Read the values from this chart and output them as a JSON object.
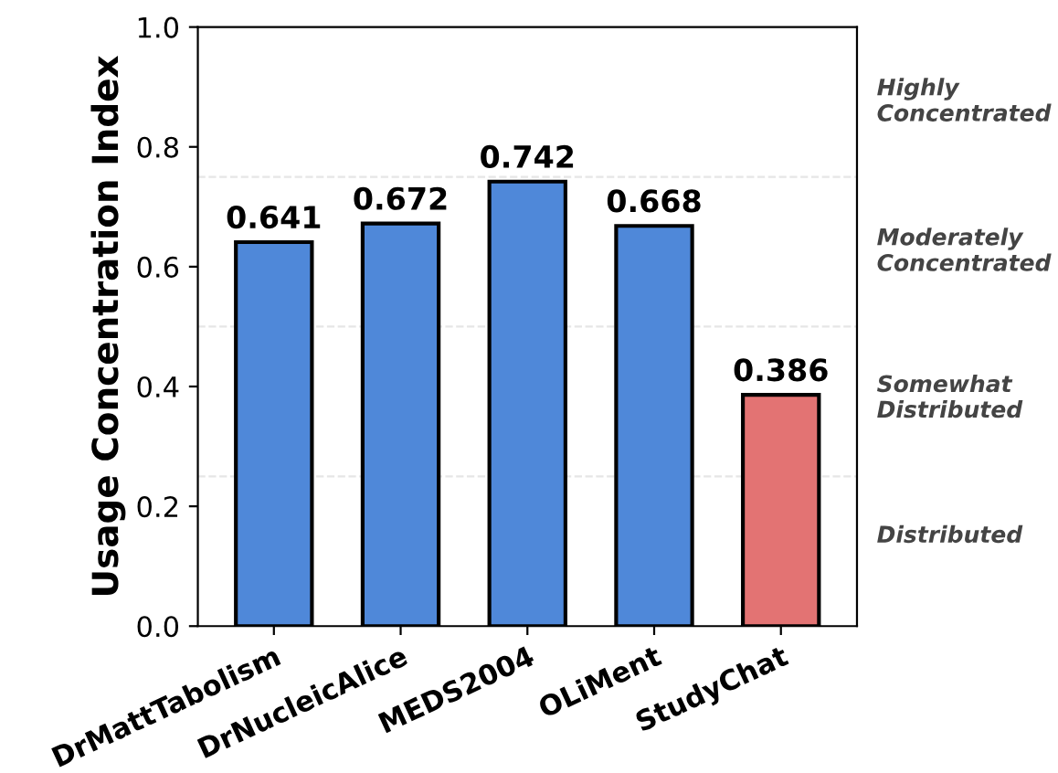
{
  "chart_data": {
    "type": "bar",
    "ylabel": "Usage Concentration Index",
    "categories": [
      "DrMattTabolism",
      "DrNucleicAlice",
      "MEDS2004",
      "OLiMent",
      "StudyChat"
    ],
    "values": [
      0.641,
      0.672,
      0.742,
      0.668,
      0.386
    ],
    "colors": [
      "#4f88d9",
      "#4f88d9",
      "#4f88d9",
      "#4f88d9",
      "#e37373"
    ],
    "data_labels": true,
    "ylim": [
      0,
      1
    ],
    "yticks": [
      {
        "value": 0,
        "label": "0.0"
      },
      0.2,
      0.4,
      0.6,
      0.8,
      {
        "value": 1,
        "label": "1.0"
      }
    ],
    "grid": false,
    "ref_lines": [
      {
        "axis": "y",
        "value": 0.25,
        "color": "#e6e6e6",
        "line_style": "dashed"
      },
      {
        "axis": "y",
        "value": 0.5,
        "color": "#e6e6e6",
        "line_style": "dashed"
      },
      {
        "axis": "y",
        "value": 0.75,
        "color": "#e6e6e6",
        "line_style": "dashed"
      }
    ],
    "annotations": [
      "Highly\nConcentrated",
      "Moderately\nConcentrated",
      "Somewhat\nDistributed",
      "Distributed"
    ]
  }
}
